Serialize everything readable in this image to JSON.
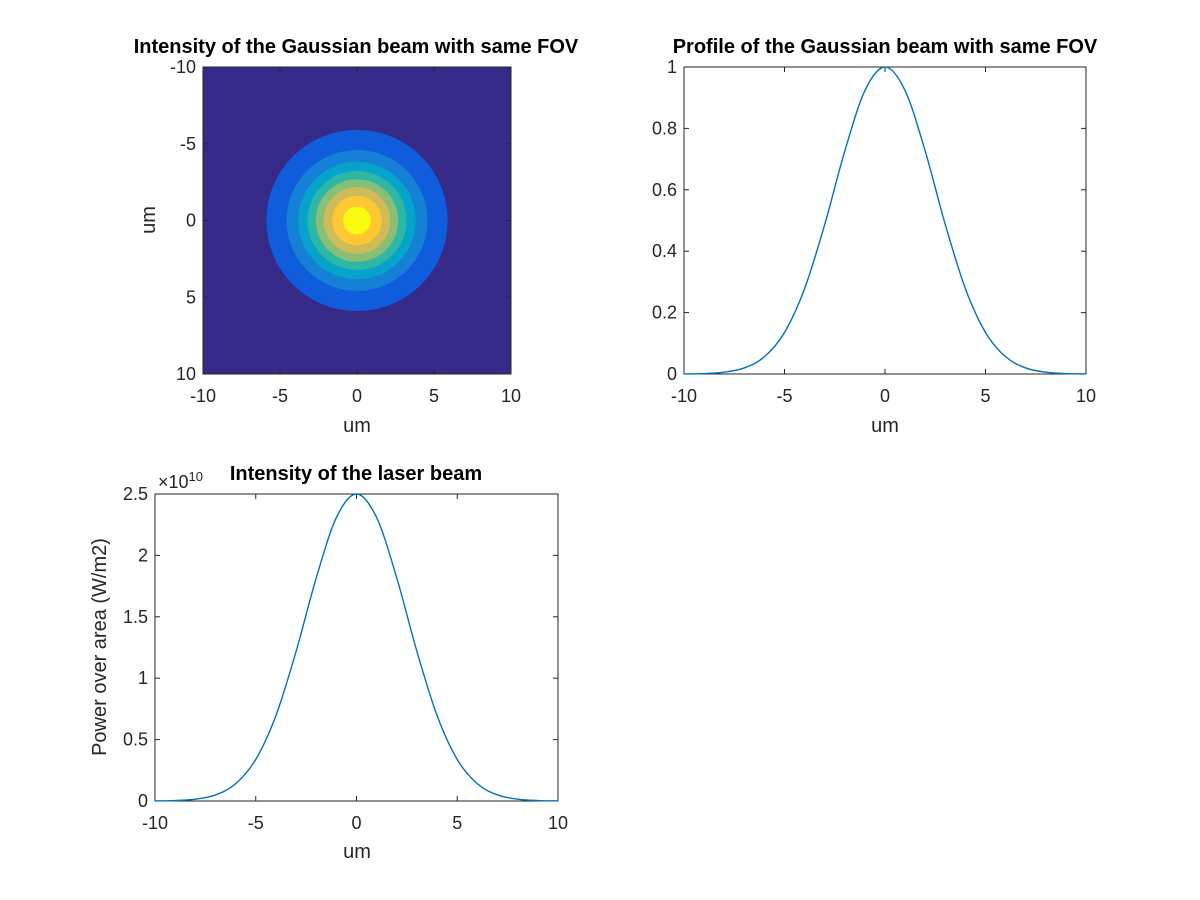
{
  "figure": {
    "background": "#ffffff",
    "axis_color": "#262626"
  },
  "chart_data": [
    {
      "type": "heatmap",
      "title": "Intensity of the Gaussian beam with same FOV",
      "xlabel": "um",
      "ylabel": "um",
      "xlim": [
        -10,
        10
      ],
      "ylim": [
        -10,
        10
      ],
      "y_direction": "reversed",
      "xticks": [
        "-10",
        "-5",
        "0",
        "5",
        "10"
      ],
      "yticks": [
        "-10",
        "-5",
        "0",
        "5",
        "10"
      ],
      "function": "exp(-(x^2+y^2)/(2*sigma^2))",
      "sigma": 2.5,
      "peak": 1,
      "colormap": "parula",
      "colormap_stops": [
        "#352A87",
        "#0F5CDD",
        "#1481D6",
        "#06A4CA",
        "#2EB7A4",
        "#87BF77",
        "#D1BB59",
        "#FEC832",
        "#F9FB0E"
      ],
      "grid": false,
      "legend": "none"
    },
    {
      "type": "line",
      "title": "Profile of the Gaussian beam with same FOV",
      "xlabel": "",
      "ylabel": "",
      "xlim": [
        -10,
        10
      ],
      "ylim": [
        0,
        1
      ],
      "xticks": [
        "-10",
        "-5",
        "0",
        "5",
        "10"
      ],
      "yticks": [
        "0",
        "0.2",
        "0.4",
        "0.6",
        "0.8",
        "1"
      ],
      "series": [
        {
          "x": [
            -10,
            -9,
            -8,
            -7,
            -6,
            -5,
            -4,
            -3,
            -2,
            -1,
            0,
            1,
            2,
            3,
            4,
            5,
            6,
            7,
            8,
            9,
            10
          ],
          "y": [
            0.0003,
            0.0015,
            0.006,
            0.0198,
            0.0561,
            0.1353,
            0.278,
            0.4868,
            0.7261,
            0.9231,
            1.0,
            0.9231,
            0.7261,
            0.4868,
            0.278,
            0.1353,
            0.0561,
            0.0198,
            0.006,
            0.0015,
            0.0003
          ]
        }
      ],
      "line_color": "#0072BD",
      "x_axis_text": "um",
      "grid": false,
      "legend": "none"
    },
    {
      "type": "line",
      "title": "Intensity of the laser beam",
      "xlabel": "um",
      "ylabel": "Power over area (W/m2)",
      "xlim": [
        -10,
        10
      ],
      "ylim": [
        0,
        2.5
      ],
      "y_exponent_prefix": "×10",
      "y_exponent": "10",
      "xticks": [
        "-10",
        "-5",
        "0",
        "5",
        "10"
      ],
      "yticks": [
        "0",
        "0.5",
        "1",
        "1.5",
        "2",
        "2.5"
      ],
      "series": [
        {
          "x": [
            -10,
            -9,
            -8,
            -7,
            -6,
            -5,
            -4,
            -3,
            -2,
            -1,
            0,
            1,
            2,
            3,
            4,
            5,
            6,
            7,
            8,
            9,
            10
          ],
          "y": [
            0.0008,
            0.0039,
            0.0149,
            0.0494,
            0.1403,
            0.3383,
            0.695,
            1.217,
            1.8153,
            2.3077,
            2.5,
            2.3077,
            1.8153,
            1.217,
            0.695,
            0.3383,
            0.1403,
            0.0494,
            0.0149,
            0.0039,
            0.0008
          ]
        }
      ],
      "line_color": "#0072BD",
      "grid": false,
      "legend": "none"
    }
  ]
}
